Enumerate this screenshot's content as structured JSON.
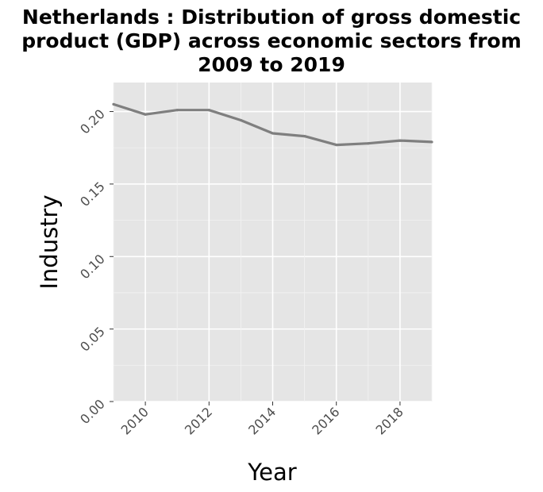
{
  "chart_data": {
    "type": "line",
    "title_lines": [
      "Netherlands : Distribution of gross domestic",
      "product (GDP) across economic sectors from",
      "2009 to 2019"
    ],
    "xlabel": "Year",
    "ylabel": "Industry",
    "xlim": [
      2009,
      2019
    ],
    "ylim": [
      0,
      0.22
    ],
    "x_ticks": [
      2010,
      2012,
      2014,
      2016,
      2018
    ],
    "y_ticks": [
      0.0,
      0.05,
      0.1,
      0.15,
      0.2
    ],
    "y_tick_labels": [
      "0.00",
      "0.05",
      "0.10",
      "0.15",
      "0.20"
    ],
    "grid": true,
    "background": "#e5e5e5",
    "line_color": "#7f7f7f",
    "series": [
      {
        "x": [
          2009,
          2010,
          2011,
          2012,
          2013,
          2014,
          2015,
          2016,
          2017,
          2018,
          2019
        ],
        "y": [
          0.205,
          0.198,
          0.201,
          0.201,
          0.194,
          0.185,
          0.183,
          0.177,
          0.178,
          0.18,
          0.179
        ]
      }
    ]
  }
}
